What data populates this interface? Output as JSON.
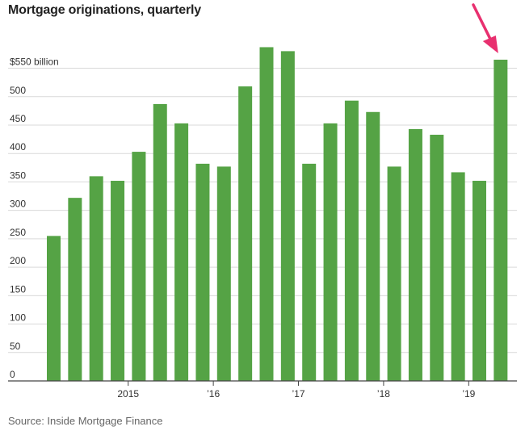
{
  "chart_data": {
    "type": "bar",
    "title": "Mortgage originations, quarterly",
    "source": "Source: Inside Mortgage Finance",
    "ytick_labels": [
      "0",
      "50",
      "100",
      "150",
      "200",
      "250",
      "300",
      "350",
      "400",
      "450",
      "500",
      "$550 billion"
    ],
    "ytick_values": [
      0,
      50,
      100,
      150,
      200,
      250,
      300,
      350,
      400,
      450,
      500,
      550
    ],
    "ylim": [
      0,
      610
    ],
    "xtick_labels": [
      {
        "label": "2015",
        "index": 3.5
      },
      {
        "label": "’16",
        "index": 7.5
      },
      {
        "label": "’17",
        "index": 11.5
      },
      {
        "label": "’18",
        "index": 15.5
      },
      {
        "label": "’19",
        "index": 19.5
      }
    ],
    "values": [
      255,
      322,
      360,
      352,
      403,
      487,
      453,
      382,
      377,
      518,
      587,
      580,
      382,
      453,
      493,
      473,
      377,
      443,
      433,
      367,
      352,
      565
    ],
    "bar_color": "#55a345",
    "highlight_color": "#e8306f",
    "highlight_index": 21,
    "grid": true
  }
}
